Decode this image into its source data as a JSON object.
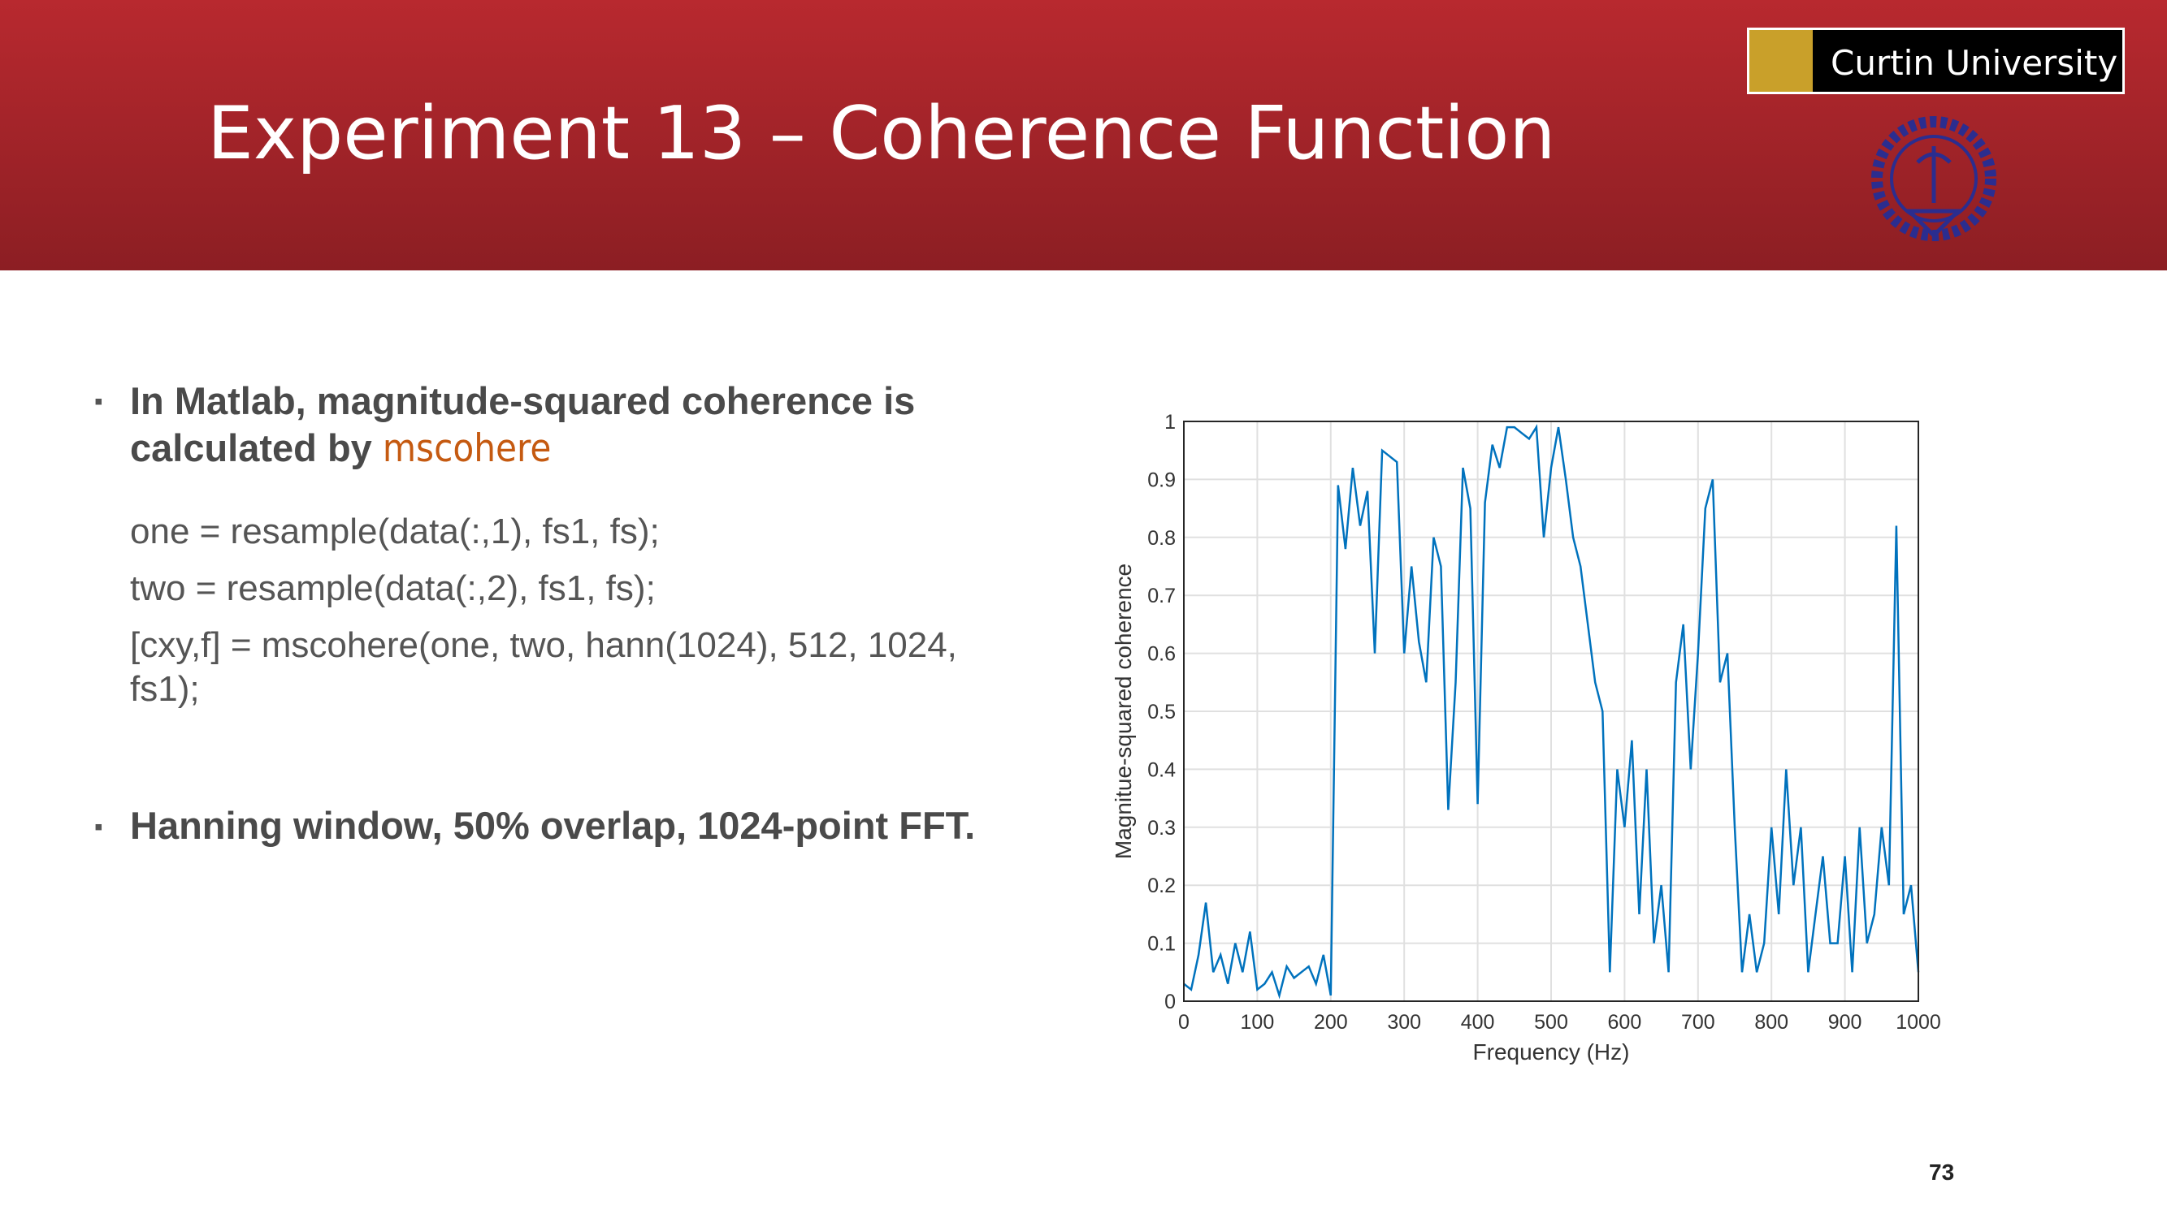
{
  "header": {
    "title": "Experiment 13 – Coherence Function",
    "logo_text": "Curtin University"
  },
  "bullets": [
    {
      "text": "In Matlab, magnitude-squared coherence is calculated by",
      "code_word": "mscohere",
      "code_lines": [
        "one = resample(data(:,1), fs1, fs);",
        "two = resample(data(:,2), fs1, fs);",
        "[cxy,f] = mscohere(one,  two, hann(1024), 512, 1024, fs1);"
      ]
    },
    {
      "text": "Hanning window, 50% overlap, 1024-point FFT."
    }
  ],
  "chart_data": {
    "type": "line",
    "xlabel": "Frequency (Hz)",
    "ylabel": "Magnitue-squared coherence",
    "color": "#0072bd",
    "grid": true,
    "xlim": [
      0,
      1000
    ],
    "ylim": [
      0,
      1
    ],
    "xticks": [
      0,
      100,
      200,
      300,
      400,
      500,
      600,
      700,
      800,
      900,
      1000
    ],
    "yticks": [
      0,
      0.1,
      0.2,
      0.3,
      0.4,
      0.5,
      0.6,
      0.7,
      0.8,
      0.9,
      1
    ],
    "x": [
      0,
      10,
      20,
      30,
      40,
      50,
      60,
      70,
      80,
      90,
      100,
      110,
      120,
      130,
      140,
      150,
      160,
      170,
      180,
      190,
      200,
      210,
      220,
      230,
      240,
      250,
      260,
      270,
      280,
      290,
      300,
      310,
      320,
      330,
      340,
      350,
      360,
      370,
      380,
      390,
      400,
      410,
      420,
      430,
      440,
      450,
      460,
      470,
      480,
      490,
      500,
      510,
      520,
      530,
      540,
      550,
      560,
      570,
      580,
      590,
      600,
      610,
      620,
      630,
      640,
      650,
      660,
      670,
      680,
      690,
      700,
      710,
      720,
      730,
      740,
      750,
      760,
      770,
      780,
      790,
      800,
      810,
      820,
      830,
      840,
      850,
      860,
      870,
      880,
      890,
      900,
      910,
      920,
      930,
      940,
      950,
      960,
      970,
      980,
      990,
      1000
    ],
    "values": [
      0.03,
      0.02,
      0.08,
      0.17,
      0.05,
      0.08,
      0.03,
      0.1,
      0.05,
      0.12,
      0.02,
      0.03,
      0.05,
      0.01,
      0.06,
      0.04,
      0.05,
      0.06,
      0.03,
      0.08,
      0.01,
      0.89,
      0.78,
      0.92,
      0.82,
      0.88,
      0.6,
      0.95,
      0.94,
      0.93,
      0.6,
      0.75,
      0.62,
      0.55,
      0.8,
      0.75,
      0.33,
      0.55,
      0.92,
      0.85,
      0.34,
      0.86,
      0.96,
      0.92,
      0.99,
      0.99,
      0.98,
      0.97,
      0.99,
      0.8,
      0.92,
      0.99,
      0.9,
      0.8,
      0.75,
      0.65,
      0.55,
      0.5,
      0.05,
      0.4,
      0.3,
      0.45,
      0.15,
      0.4,
      0.1,
      0.2,
      0.05,
      0.55,
      0.65,
      0.4,
      0.6,
      0.85,
      0.9,
      0.55,
      0.6,
      0.3,
      0.05,
      0.15,
      0.05,
      0.1,
      0.3,
      0.15,
      0.4,
      0.2,
      0.3,
      0.05,
      0.15,
      0.25,
      0.1,
      0.1,
      0.25,
      0.05,
      0.3,
      0.1,
      0.15,
      0.3,
      0.2,
      0.82,
      0.15,
      0.2,
      0.05
    ]
  },
  "page_number": 73
}
